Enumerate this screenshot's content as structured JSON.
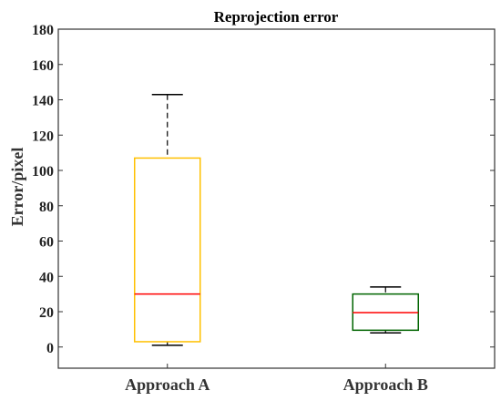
{
  "chart_data": {
    "type": "box",
    "title": "Reprojection error",
    "ylabel": "Error/pixel",
    "xlabel": "",
    "ylim": [
      -12,
      180
    ],
    "yticks": [
      0,
      20,
      40,
      60,
      80,
      100,
      120,
      140,
      160,
      180
    ],
    "categories": [
      "Approach A",
      "Approach B"
    ],
    "boxes": [
      {
        "category": "Approach A",
        "whisker_low": 1,
        "q1": 3,
        "median": 30,
        "q3": 107,
        "whisker_high": 143,
        "color": "#FFC000",
        "median_color": "#FF0000"
      },
      {
        "category": "Approach B",
        "whisker_low": 8,
        "q1": 9.5,
        "median": 19.5,
        "q3": 30,
        "whisker_high": 34,
        "color": "#006400",
        "median_color": "#FF0000"
      }
    ],
    "grid": false
  }
}
